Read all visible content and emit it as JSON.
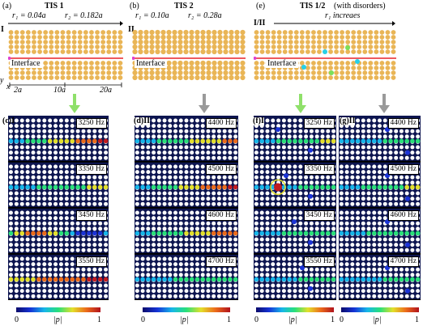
{
  "panels_top": [
    {
      "label": "(a)",
      "title": "TIS 1",
      "side": "I",
      "r_left": "r₁ = 0.04a",
      "r_right": "r₂ = 0.182a",
      "interface": "Interface",
      "axis": [
        "2a",
        "10a",
        "20a"
      ],
      "axis_letters": [
        "y",
        "x"
      ]
    },
    {
      "label": "(b)",
      "title": "TIS 2",
      "side": "II",
      "r_left": "r₁ = 0.10a",
      "r_right": "r₂ = 0.28a",
      "interface": "Interface"
    },
    {
      "label": "(e)",
      "title": "TIS 1/2",
      "title_suffix": "(with disorders)",
      "side": "I/II",
      "r_caption": "r₁ increaes",
      "interface": "Interface"
    }
  ],
  "panels_bottom": [
    {
      "label": "(c)",
      "side": "I",
      "freqs": [
        "3250 Hz",
        "3350 Hz",
        "3450 Hz",
        "3550 Hz"
      ]
    },
    {
      "label": "(d)",
      "side": "II",
      "freqs": [
        "4400 Hz",
        "4500 Hz",
        "4600 Hz",
        "4700 Hz"
      ]
    },
    {
      "label": "(f)",
      "side": "I",
      "freqs": [
        "3250 Hz",
        "3350 Hz",
        "3450 Hz",
        "3550 Hz"
      ]
    },
    {
      "label": "(g)",
      "side": "II",
      "freqs": [
        "4400 Hz",
        "4500 Hz",
        "4600 Hz",
        "4700 Hz"
      ]
    }
  ],
  "colorbar": {
    "min": "0",
    "max": "1",
    "label": "|p|"
  },
  "colors": {
    "dot": "#e9b556",
    "map_bg": "#0d1550",
    "arrow_green": "#8fe06a",
    "arrow_gray": "#9a9a9a",
    "interface_line": "#e8232a"
  }
}
